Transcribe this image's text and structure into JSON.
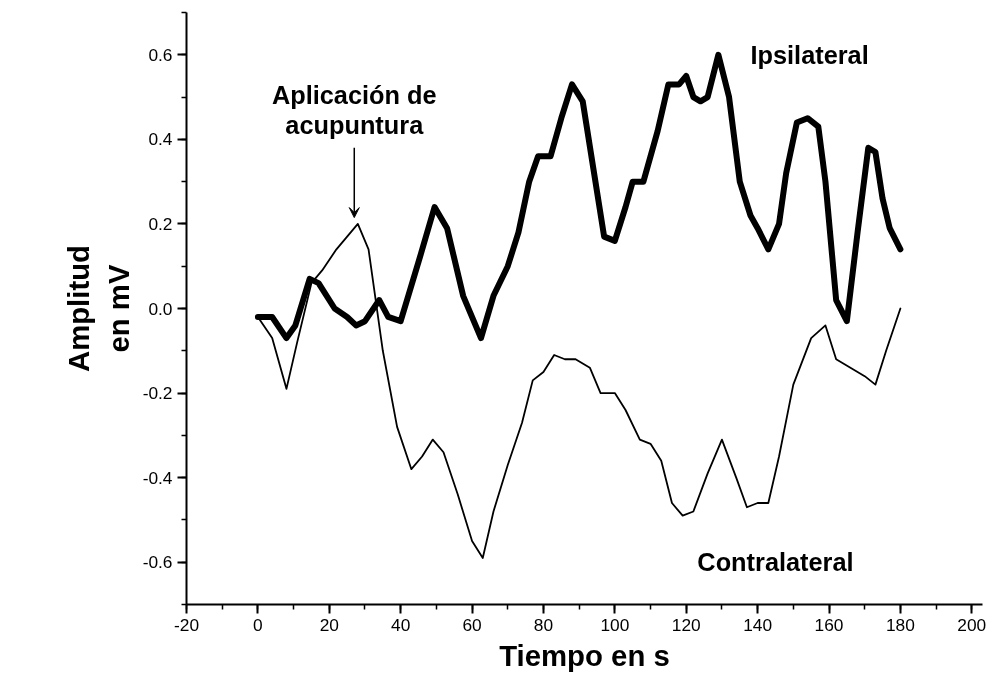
{
  "chart_data": {
    "type": "line",
    "xlabel": "Tiempo en s",
    "ylabel": "Amplitud\nen mV",
    "xlim": [
      -20,
      203
    ],
    "xticks": [
      -20,
      0,
      20,
      40,
      60,
      80,
      100,
      120,
      140,
      160,
      180,
      200
    ],
    "ylim": [
      -0.7,
      0.7
    ],
    "yticks": [
      -0.6,
      -0.4,
      -0.2,
      {
        "value": 0,
        "label": "0.0"
      },
      0.2,
      0.4,
      0.6
    ],
    "annotations": [
      {
        "text": "Aplicación de\nacupuntura",
        "x": 27,
        "y": 0.2
      }
    ],
    "series": [
      {
        "name": "Ipsilateral",
        "color": "#000000",
        "x": [
          0,
          4,
          8,
          10.5,
          14.5,
          17,
          21.5,
          25,
          27.5,
          30,
          34,
          36.5,
          40,
          45,
          49.5,
          53,
          57.5,
          62.5,
          66,
          70,
          73,
          76,
          78.5,
          82,
          85,
          88,
          91,
          94,
          97,
          100,
          103,
          105,
          108,
          112,
          115,
          118,
          120,
          122,
          124,
          126,
          129,
          132,
          135,
          138,
          140,
          143,
          146,
          148,
          151,
          154,
          157,
          159,
          162,
          165,
          168,
          171,
          173,
          175,
          177,
          180
        ],
        "values": [
          -0.02,
          -0.02,
          -0.07,
          -0.04,
          0.07,
          0.06,
          0.0,
          -0.02,
          -0.04,
          -0.03,
          0.02,
          -0.02,
          -0.03,
          0.11,
          0.24,
          0.19,
          0.03,
          -0.07,
          0.03,
          0.1,
          0.18,
          0.3,
          0.36,
          0.36,
          0.45,
          0.53,
          0.49,
          0.33,
          0.17,
          0.16,
          0.24,
          0.3,
          0.3,
          0.42,
          0.53,
          0.53,
          0.55,
          0.5,
          0.49,
          0.5,
          0.6,
          0.5,
          0.3,
          0.22,
          0.19,
          0.14,
          0.2,
          0.32,
          0.44,
          0.45,
          0.43,
          0.3,
          0.02,
          -0.03,
          0.18,
          0.38,
          0.37,
          0.26,
          0.19,
          0.14
        ]
      },
      {
        "name": "Contralateral",
        "color": "#000000",
        "x": [
          0,
          4,
          8,
          11,
          15,
          18,
          22,
          26,
          28,
          31,
          35,
          39,
          43,
          46,
          49,
          52,
          56,
          60,
          63,
          66,
          70,
          74,
          77,
          80,
          83,
          86,
          89,
          93,
          96,
          100,
          103,
          107,
          110,
          113,
          116,
          119,
          122,
          126,
          130,
          134,
          137,
          140,
          143,
          146,
          150,
          155,
          159,
          162,
          166,
          170,
          173,
          176,
          180
        ],
        "values": [
          -0.02,
          -0.07,
          -0.19,
          -0.08,
          0.06,
          0.09,
          0.14,
          0.18,
          0.2,
          0.14,
          -0.1,
          -0.28,
          -0.38,
          -0.35,
          -0.31,
          -0.34,
          -0.44,
          -0.55,
          -0.59,
          -0.48,
          -0.37,
          -0.27,
          -0.17,
          -0.15,
          -0.11,
          -0.12,
          -0.12,
          -0.14,
          -0.2,
          -0.2,
          -0.24,
          -0.31,
          -0.32,
          -0.36,
          -0.46,
          -0.49,
          -0.48,
          -0.39,
          -0.31,
          -0.4,
          -0.47,
          -0.46,
          -0.46,
          -0.35,
          -0.18,
          -0.07,
          -0.04,
          -0.12,
          -0.14,
          -0.16,
          -0.18,
          -0.1,
          0.0
        ]
      }
    ]
  }
}
